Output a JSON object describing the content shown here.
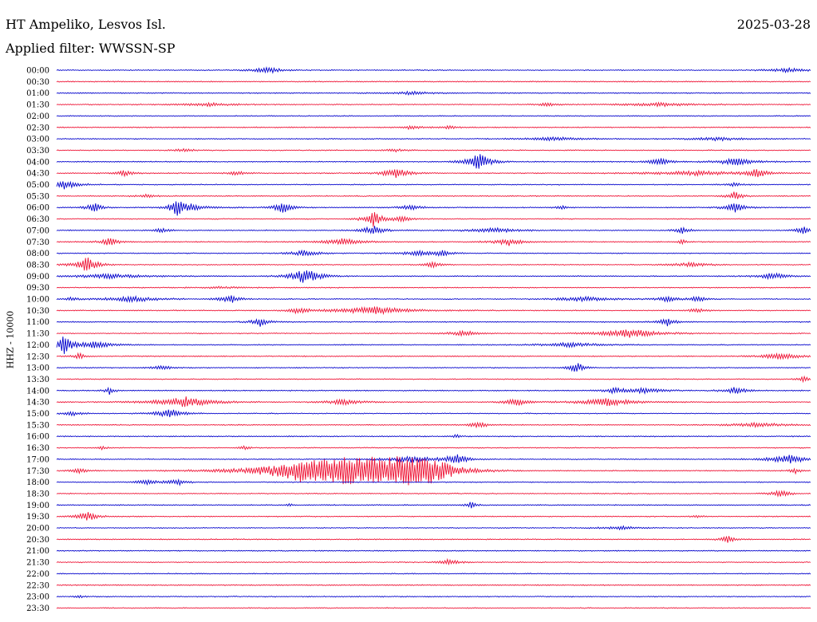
{
  "header": {
    "station": "HT Ampeliko, Lesvos Isl.",
    "date": "2025-03-28",
    "filter": "Applied filter: WWSSN-SP"
  },
  "colors": {
    "blue": "#0000cc",
    "red": "#ee1133"
  },
  "chart_data": {
    "type": "line",
    "title": "HT Ampeliko, Lesvos Isl.",
    "subtitle": "Applied filter: WWSSN-SP",
    "ylabel": "HHZ - 10000",
    "xlabel": "",
    "series_colors_alternate": [
      "blue",
      "red"
    ],
    "rows": [
      {
        "label": "00:00",
        "events": [
          [
            0.28,
            0.6,
            0.015
          ],
          [
            0.97,
            0.4,
            0.02
          ]
        ]
      },
      {
        "label": "00:30",
        "events": []
      },
      {
        "label": "01:00",
        "events": [
          [
            0.47,
            0.3,
            0.02
          ]
        ]
      },
      {
        "label": "01:30",
        "events": [
          [
            0.2,
            0.3,
            0.03
          ],
          [
            0.65,
            0.35,
            0.01
          ],
          [
            0.8,
            0.3,
            0.04
          ]
        ]
      },
      {
        "label": "02:00",
        "events": []
      },
      {
        "label": "02:30",
        "events": [
          [
            0.47,
            0.4,
            0.01
          ],
          [
            0.52,
            0.3,
            0.01
          ]
        ]
      },
      {
        "label": "03:00",
        "events": [
          [
            0.66,
            0.3,
            0.03
          ],
          [
            0.88,
            0.3,
            0.03
          ]
        ]
      },
      {
        "label": "03:30",
        "events": [
          [
            0.17,
            0.3,
            0.01
          ],
          [
            0.45,
            0.25,
            0.01
          ]
        ]
      },
      {
        "label": "04:00",
        "events": [
          [
            0.56,
            1.7,
            0.012
          ],
          [
            0.8,
            0.8,
            0.01
          ],
          [
            0.9,
            0.7,
            0.02
          ]
        ]
      },
      {
        "label": "04:30",
        "events": [
          [
            0.09,
            0.5,
            0.01
          ],
          [
            0.24,
            0.4,
            0.01
          ],
          [
            0.45,
            0.9,
            0.015
          ],
          [
            0.85,
            0.4,
            0.05
          ],
          [
            0.93,
            0.9,
            0.01
          ]
        ]
      },
      {
        "label": "05:00",
        "events": [
          [
            0.01,
            0.8,
            0.015
          ],
          [
            0.9,
            0.3,
            0.01
          ]
        ]
      },
      {
        "label": "05:30",
        "events": [
          [
            0.12,
            0.3,
            0.01
          ],
          [
            0.9,
            0.9,
            0.008
          ]
        ]
      },
      {
        "label": "06:00",
        "events": [
          [
            0.05,
            0.9,
            0.008
          ],
          [
            0.16,
            1.8,
            0.006
          ],
          [
            0.18,
            0.6,
            0.02
          ],
          [
            0.3,
            1.0,
            0.01
          ],
          [
            0.47,
            0.6,
            0.01
          ],
          [
            0.67,
            0.4,
            0.005
          ],
          [
            0.9,
            1.0,
            0.01
          ]
        ]
      },
      {
        "label": "06:30",
        "events": [
          [
            0.42,
            1.4,
            0.01
          ],
          [
            0.46,
            0.5,
            0.01
          ]
        ]
      },
      {
        "label": "07:00",
        "events": [
          [
            0.14,
            0.4,
            0.01
          ],
          [
            0.42,
            0.9,
            0.012
          ],
          [
            0.58,
            0.4,
            0.03
          ],
          [
            0.83,
            0.6,
            0.008
          ],
          [
            0.99,
            0.7,
            0.008
          ]
        ]
      },
      {
        "label": "07:30",
        "events": [
          [
            0.07,
            0.7,
            0.01
          ],
          [
            0.38,
            0.6,
            0.02
          ],
          [
            0.6,
            0.7,
            0.015
          ],
          [
            0.83,
            0.4,
            0.005
          ]
        ]
      },
      {
        "label": "08:00",
        "events": [
          [
            0.33,
            0.6,
            0.015
          ],
          [
            0.48,
            0.4,
            0.02
          ],
          [
            0.51,
            0.5,
            0.01
          ]
        ]
      },
      {
        "label": "08:30",
        "events": [
          [
            0.04,
            1.5,
            0.012
          ],
          [
            0.5,
            0.6,
            0.008
          ],
          [
            0.84,
            0.4,
            0.02
          ]
        ]
      },
      {
        "label": "09:00",
        "events": [
          [
            0.07,
            0.4,
            0.04
          ],
          [
            0.33,
            1.5,
            0.015
          ],
          [
            0.95,
            0.6,
            0.015
          ]
        ]
      },
      {
        "label": "09:30",
        "events": [
          [
            0.22,
            0.2,
            0.02
          ]
        ]
      },
      {
        "label": "10:00",
        "events": [
          [
            0.02,
            0.4,
            0.005
          ],
          [
            0.1,
            0.5,
            0.03
          ],
          [
            0.23,
            0.8,
            0.01
          ],
          [
            0.7,
            0.4,
            0.03
          ],
          [
            0.81,
            0.6,
            0.01
          ],
          [
            0.85,
            0.6,
            0.008
          ]
        ]
      },
      {
        "label": "10:30",
        "events": [
          [
            0.32,
            0.5,
            0.01
          ],
          [
            0.42,
            0.7,
            0.04
          ],
          [
            0.85,
            0.4,
            0.01
          ]
        ]
      },
      {
        "label": "11:00",
        "events": [
          [
            0.27,
            0.8,
            0.01
          ],
          [
            0.81,
            0.7,
            0.01
          ]
        ]
      },
      {
        "label": "11:30",
        "events": [
          [
            0.54,
            0.5,
            0.015
          ],
          [
            0.76,
            0.8,
            0.03
          ]
        ]
      },
      {
        "label": "12:00",
        "events": [
          [
            0.01,
            1.7,
            0.008
          ],
          [
            0.05,
            0.6,
            0.02
          ],
          [
            0.68,
            0.4,
            0.03
          ]
        ]
      },
      {
        "label": "12:30",
        "events": [
          [
            0.03,
            0.6,
            0.006
          ],
          [
            0.96,
            0.6,
            0.02
          ]
        ]
      },
      {
        "label": "13:00",
        "events": [
          [
            0.14,
            0.4,
            0.01
          ],
          [
            0.69,
            1.0,
            0.008
          ]
        ]
      },
      {
        "label": "13:30",
        "events": [
          [
            0.99,
            0.6,
            0.005
          ]
        ]
      },
      {
        "label": "14:00",
        "events": [
          [
            0.07,
            0.7,
            0.005
          ],
          [
            0.74,
            0.5,
            0.01
          ],
          [
            0.78,
            0.5,
            0.02
          ],
          [
            0.9,
            0.8,
            0.01
          ]
        ]
      },
      {
        "label": "14:30",
        "events": [
          [
            0.17,
            1.0,
            0.03
          ],
          [
            0.38,
            0.5,
            0.02
          ],
          [
            0.61,
            1.0,
            0.01
          ],
          [
            0.73,
            0.7,
            0.03
          ]
        ]
      },
      {
        "label": "15:00",
        "events": [
          [
            0.15,
            0.8,
            0.015
          ],
          [
            0.02,
            0.4,
            0.01
          ]
        ]
      },
      {
        "label": "15:30",
        "events": [
          [
            0.56,
            0.6,
            0.01
          ],
          [
            0.93,
            0.4,
            0.03
          ]
        ]
      },
      {
        "label": "16:00",
        "events": [
          [
            0.53,
            0.3,
            0.005
          ]
        ]
      },
      {
        "label": "16:30",
        "events": [
          [
            0.06,
            0.3,
            0.005
          ],
          [
            0.25,
            0.4,
            0.005
          ]
        ]
      },
      {
        "label": "17:00",
        "events": [
          [
            0.47,
            0.6,
            0.03
          ],
          [
            0.53,
            1.0,
            0.01
          ],
          [
            0.97,
            0.9,
            0.02
          ]
        ]
      },
      {
        "label": "17:30",
        "events": [
          [
            0.33,
            2.0,
            0.05
          ],
          [
            0.38,
            1.6,
            0.03
          ],
          [
            0.42,
            1.2,
            0.02
          ],
          [
            0.46,
            2.3,
            0.04
          ],
          [
            0.5,
            1.7,
            0.02
          ],
          [
            0.03,
            0.4,
            0.01
          ],
          [
            0.98,
            0.5,
            0.006
          ]
        ]
      },
      {
        "label": "18:00",
        "events": [
          [
            0.12,
            0.5,
            0.01
          ],
          [
            0.16,
            0.6,
            0.01
          ]
        ]
      },
      {
        "label": "18:30",
        "events": [
          [
            0.96,
            0.9,
            0.008
          ]
        ]
      },
      {
        "label": "19:00",
        "events": [
          [
            0.55,
            0.7,
            0.005
          ],
          [
            0.31,
            0.3,
            0.004
          ]
        ]
      },
      {
        "label": "19:30",
        "events": [
          [
            0.04,
            1.0,
            0.01
          ],
          [
            0.85,
            0.3,
            0.005
          ]
        ]
      },
      {
        "label": "20:00",
        "events": [
          [
            0.75,
            0.3,
            0.02
          ]
        ]
      },
      {
        "label": "20:30",
        "events": [
          [
            0.89,
            0.7,
            0.008
          ]
        ]
      },
      {
        "label": "21:00",
        "events": []
      },
      {
        "label": "21:30",
        "events": [
          [
            0.52,
            0.6,
            0.01
          ]
        ]
      },
      {
        "label": "22:00",
        "events": []
      },
      {
        "label": "22:30",
        "events": []
      },
      {
        "label": "23:00",
        "events": [
          [
            0.03,
            0.4,
            0.004
          ]
        ]
      },
      {
        "label": "23:30",
        "events": []
      }
    ]
  }
}
